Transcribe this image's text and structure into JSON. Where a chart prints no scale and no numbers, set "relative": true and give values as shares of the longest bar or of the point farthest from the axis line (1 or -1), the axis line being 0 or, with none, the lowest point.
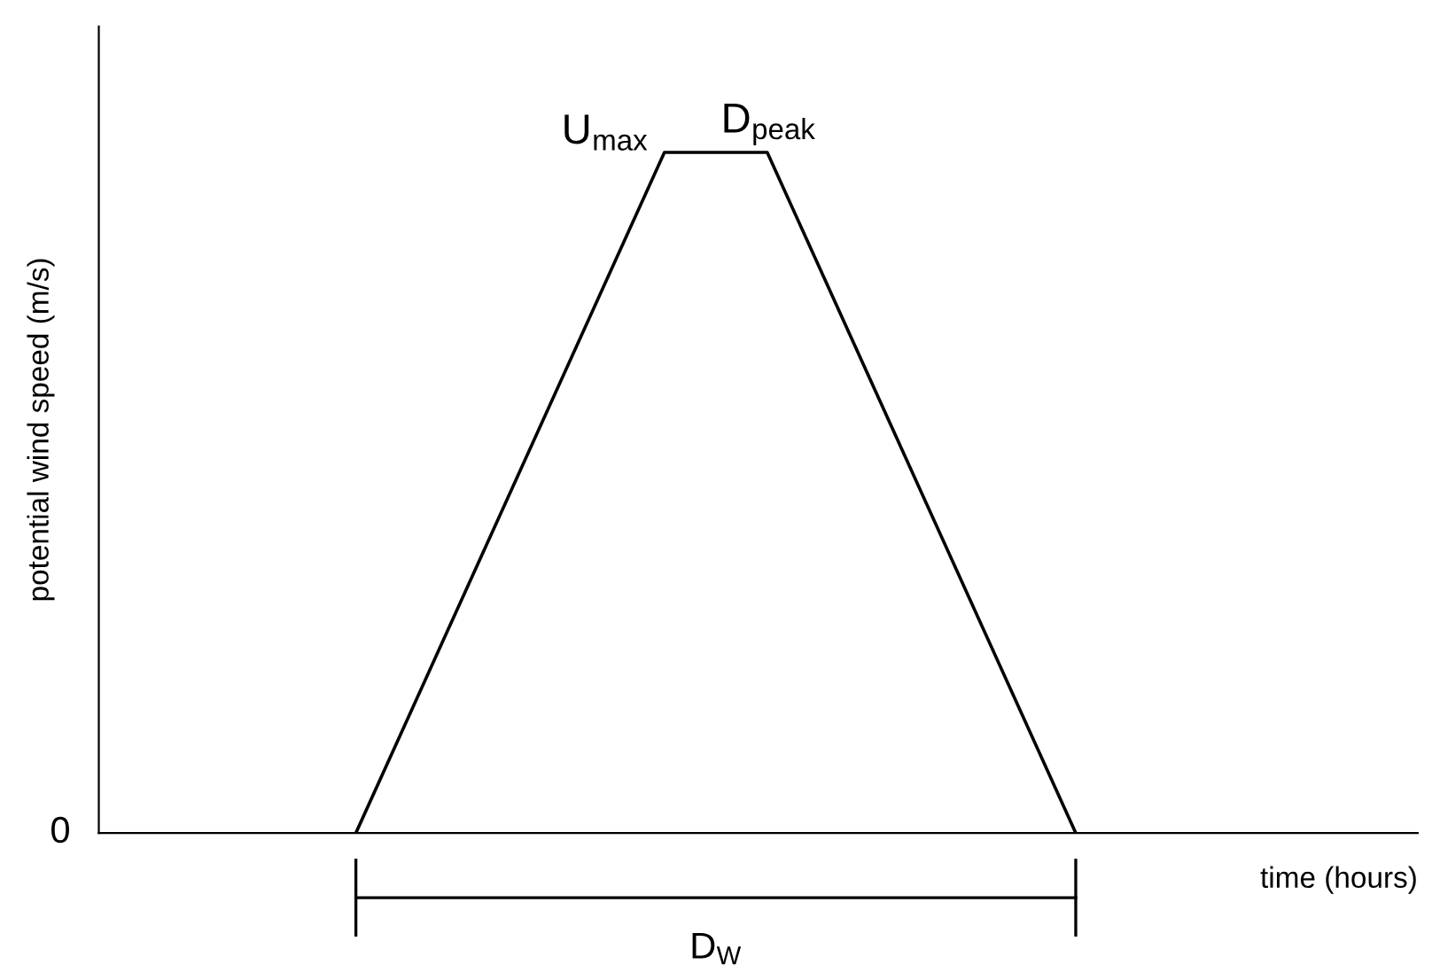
{
  "chart_data": {
    "type": "line",
    "relative": true,
    "xlabel": "time (hours)",
    "ylabel": "potential wind speed (m/s)",
    "categories": [
      null,
      null,
      null,
      null,
      null,
      null,
      null,
      null,
      null,
      null,
      null,
      null,
      null,
      null,
      null,
      null,
      null,
      null,
      null,
      null,
      null,
      null,
      null,
      null,
      null,
      null
    ],
    "series": [
      {
        "color": "#000000",
        "values": [
          null,
          null,
          null,
          null,
          null,
          0,
          null,
          null,
          null,
          null,
          null,
          1,
          null,
          1,
          null,
          null,
          null,
          null,
          null,
          0,
          null,
          null,
          null,
          null,
          null,
          null
        ]
      }
    ],
    "annotations": [
      "0",
      "U$_{max}$",
      "D$_{peak}$",
      "D$_{W}$"
    ],
    "grid": false,
    "legend": false,
    "marker": "none",
    "line_style": "solid"
  }
}
